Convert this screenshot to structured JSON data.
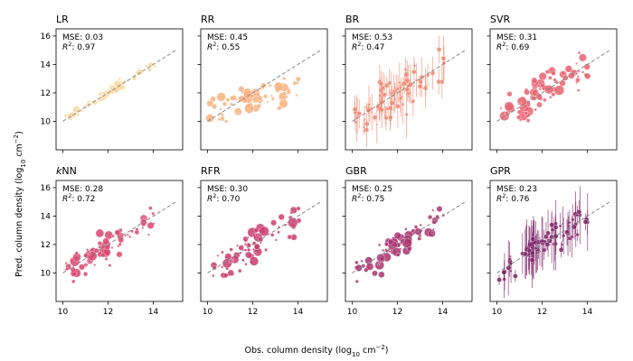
{
  "figure": {
    "ylabel_main": "Pred. column density (log",
    "ylabel_sub": "10",
    "ylabel_unit": " cm",
    "ylabel_sup": "−2",
    "ylabel_close": ")",
    "xlabel_main": "Obs. column density (log",
    "xlabel_sub": "10",
    "xlabel_unit": " cm",
    "xlabel_sup": "−2",
    "xlabel_close": ")"
  },
  "chart_data": [
    {
      "type": "scatter",
      "title": "LR",
      "mse_label": "MSE: 0.03",
      "r2_value": ": 0.97",
      "color": "#f8d79a",
      "errorbars": false,
      "xlim": [
        9.7,
        15.3
      ],
      "ylim": [
        8.0,
        16.5
      ],
      "xticks": [
        "10",
        "12",
        "14"
      ],
      "yticks": [
        "10",
        "12",
        "14",
        "16"
      ],
      "reference_line": {
        "x": [
          10,
          15
        ],
        "y": [
          10,
          15
        ]
      }
    },
    {
      "type": "scatter",
      "title": "RR",
      "mse_label": "MSE: 0.45",
      "r2_value": ": 0.55",
      "color": "#f7b27f",
      "errorbars": false,
      "xlim": [
        9.7,
        15.3
      ],
      "ylim": [
        8.0,
        16.5
      ],
      "xticks": [
        "10",
        "12",
        "14"
      ],
      "yticks": [
        "10",
        "12",
        "14",
        "16"
      ],
      "reference_line": {
        "x": [
          10,
          15
        ],
        "y": [
          10,
          15
        ]
      }
    },
    {
      "type": "scatter",
      "title": "BR",
      "mse_label": "MSE: 0.53",
      "r2_value": ": 0.47",
      "color": "#f08a72",
      "errorbars": true,
      "xlim": [
        9.7,
        15.3
      ],
      "ylim": [
        8.0,
        16.5
      ],
      "xticks": [
        "10",
        "12",
        "14"
      ],
      "yticks": [
        "10",
        "12",
        "14",
        "16"
      ],
      "reference_line": {
        "x": [
          10,
          15
        ],
        "y": [
          10,
          15
        ]
      }
    },
    {
      "type": "scatter",
      "title": "SVR",
      "mse_label": "MSE: 0.31",
      "r2_value": ": 0.69",
      "color": "#e8616f",
      "errorbars": false,
      "xlim": [
        9.7,
        15.3
      ],
      "ylim": [
        8.0,
        16.5
      ],
      "xticks": [
        "10",
        "12",
        "14"
      ],
      "yticks": [
        "10",
        "12",
        "14",
        "16"
      ],
      "reference_line": {
        "x": [
          10,
          15
        ],
        "y": [
          10,
          15
        ]
      }
    },
    {
      "type": "scatter",
      "title_k": "k",
      "title": "NN",
      "mse_label": "MSE: 0.28",
      "r2_value": ": 0.72",
      "color": "#d9466f",
      "errorbars": false,
      "xlim": [
        9.7,
        15.3
      ],
      "ylim": [
        8.0,
        16.5
      ],
      "xticks": [
        "10",
        "12",
        "14"
      ],
      "yticks": [
        "10",
        "12",
        "14",
        "16"
      ],
      "reference_line": {
        "x": [
          10,
          15
        ],
        "y": [
          10,
          15
        ]
      }
    },
    {
      "type": "scatter",
      "title": "RFR",
      "mse_label": "MSE: 0.30",
      "r2_value": ": 0.70",
      "color": "#c93d6e",
      "errorbars": false,
      "xlim": [
        9.7,
        15.3
      ],
      "ylim": [
        8.0,
        16.5
      ],
      "xticks": [
        "10",
        "12",
        "14"
      ],
      "yticks": [
        "10",
        "12",
        "14",
        "16"
      ],
      "reference_line": {
        "x": [
          10,
          15
        ],
        "y": [
          10,
          15
        ]
      }
    },
    {
      "type": "scatter",
      "title": "GBR",
      "mse_label": "MSE: 0.25",
      "r2_value": ": 0.75",
      "color": "#a9336f",
      "errorbars": false,
      "xlim": [
        9.7,
        15.3
      ],
      "ylim": [
        8.0,
        16.5
      ],
      "xticks": [
        "10",
        "12",
        "14"
      ],
      "yticks": [
        "10",
        "12",
        "14",
        "16"
      ],
      "reference_line": {
        "x": [
          10,
          15
        ],
        "y": [
          10,
          15
        ]
      }
    },
    {
      "type": "scatter",
      "title": "GPR",
      "mse_label": "MSE: 0.23",
      "r2_value": ": 0.76",
      "color": "#7d2468",
      "errorbars": true,
      "xlim": [
        9.7,
        15.3
      ],
      "ylim": [
        8.0,
        16.5
      ],
      "xticks": [
        "10",
        "12",
        "14"
      ],
      "yticks": [
        "10",
        "12",
        "14",
        "16"
      ],
      "reference_line": {
        "x": [
          10,
          15
        ],
        "y": [
          10,
          15
        ]
      }
    }
  ]
}
